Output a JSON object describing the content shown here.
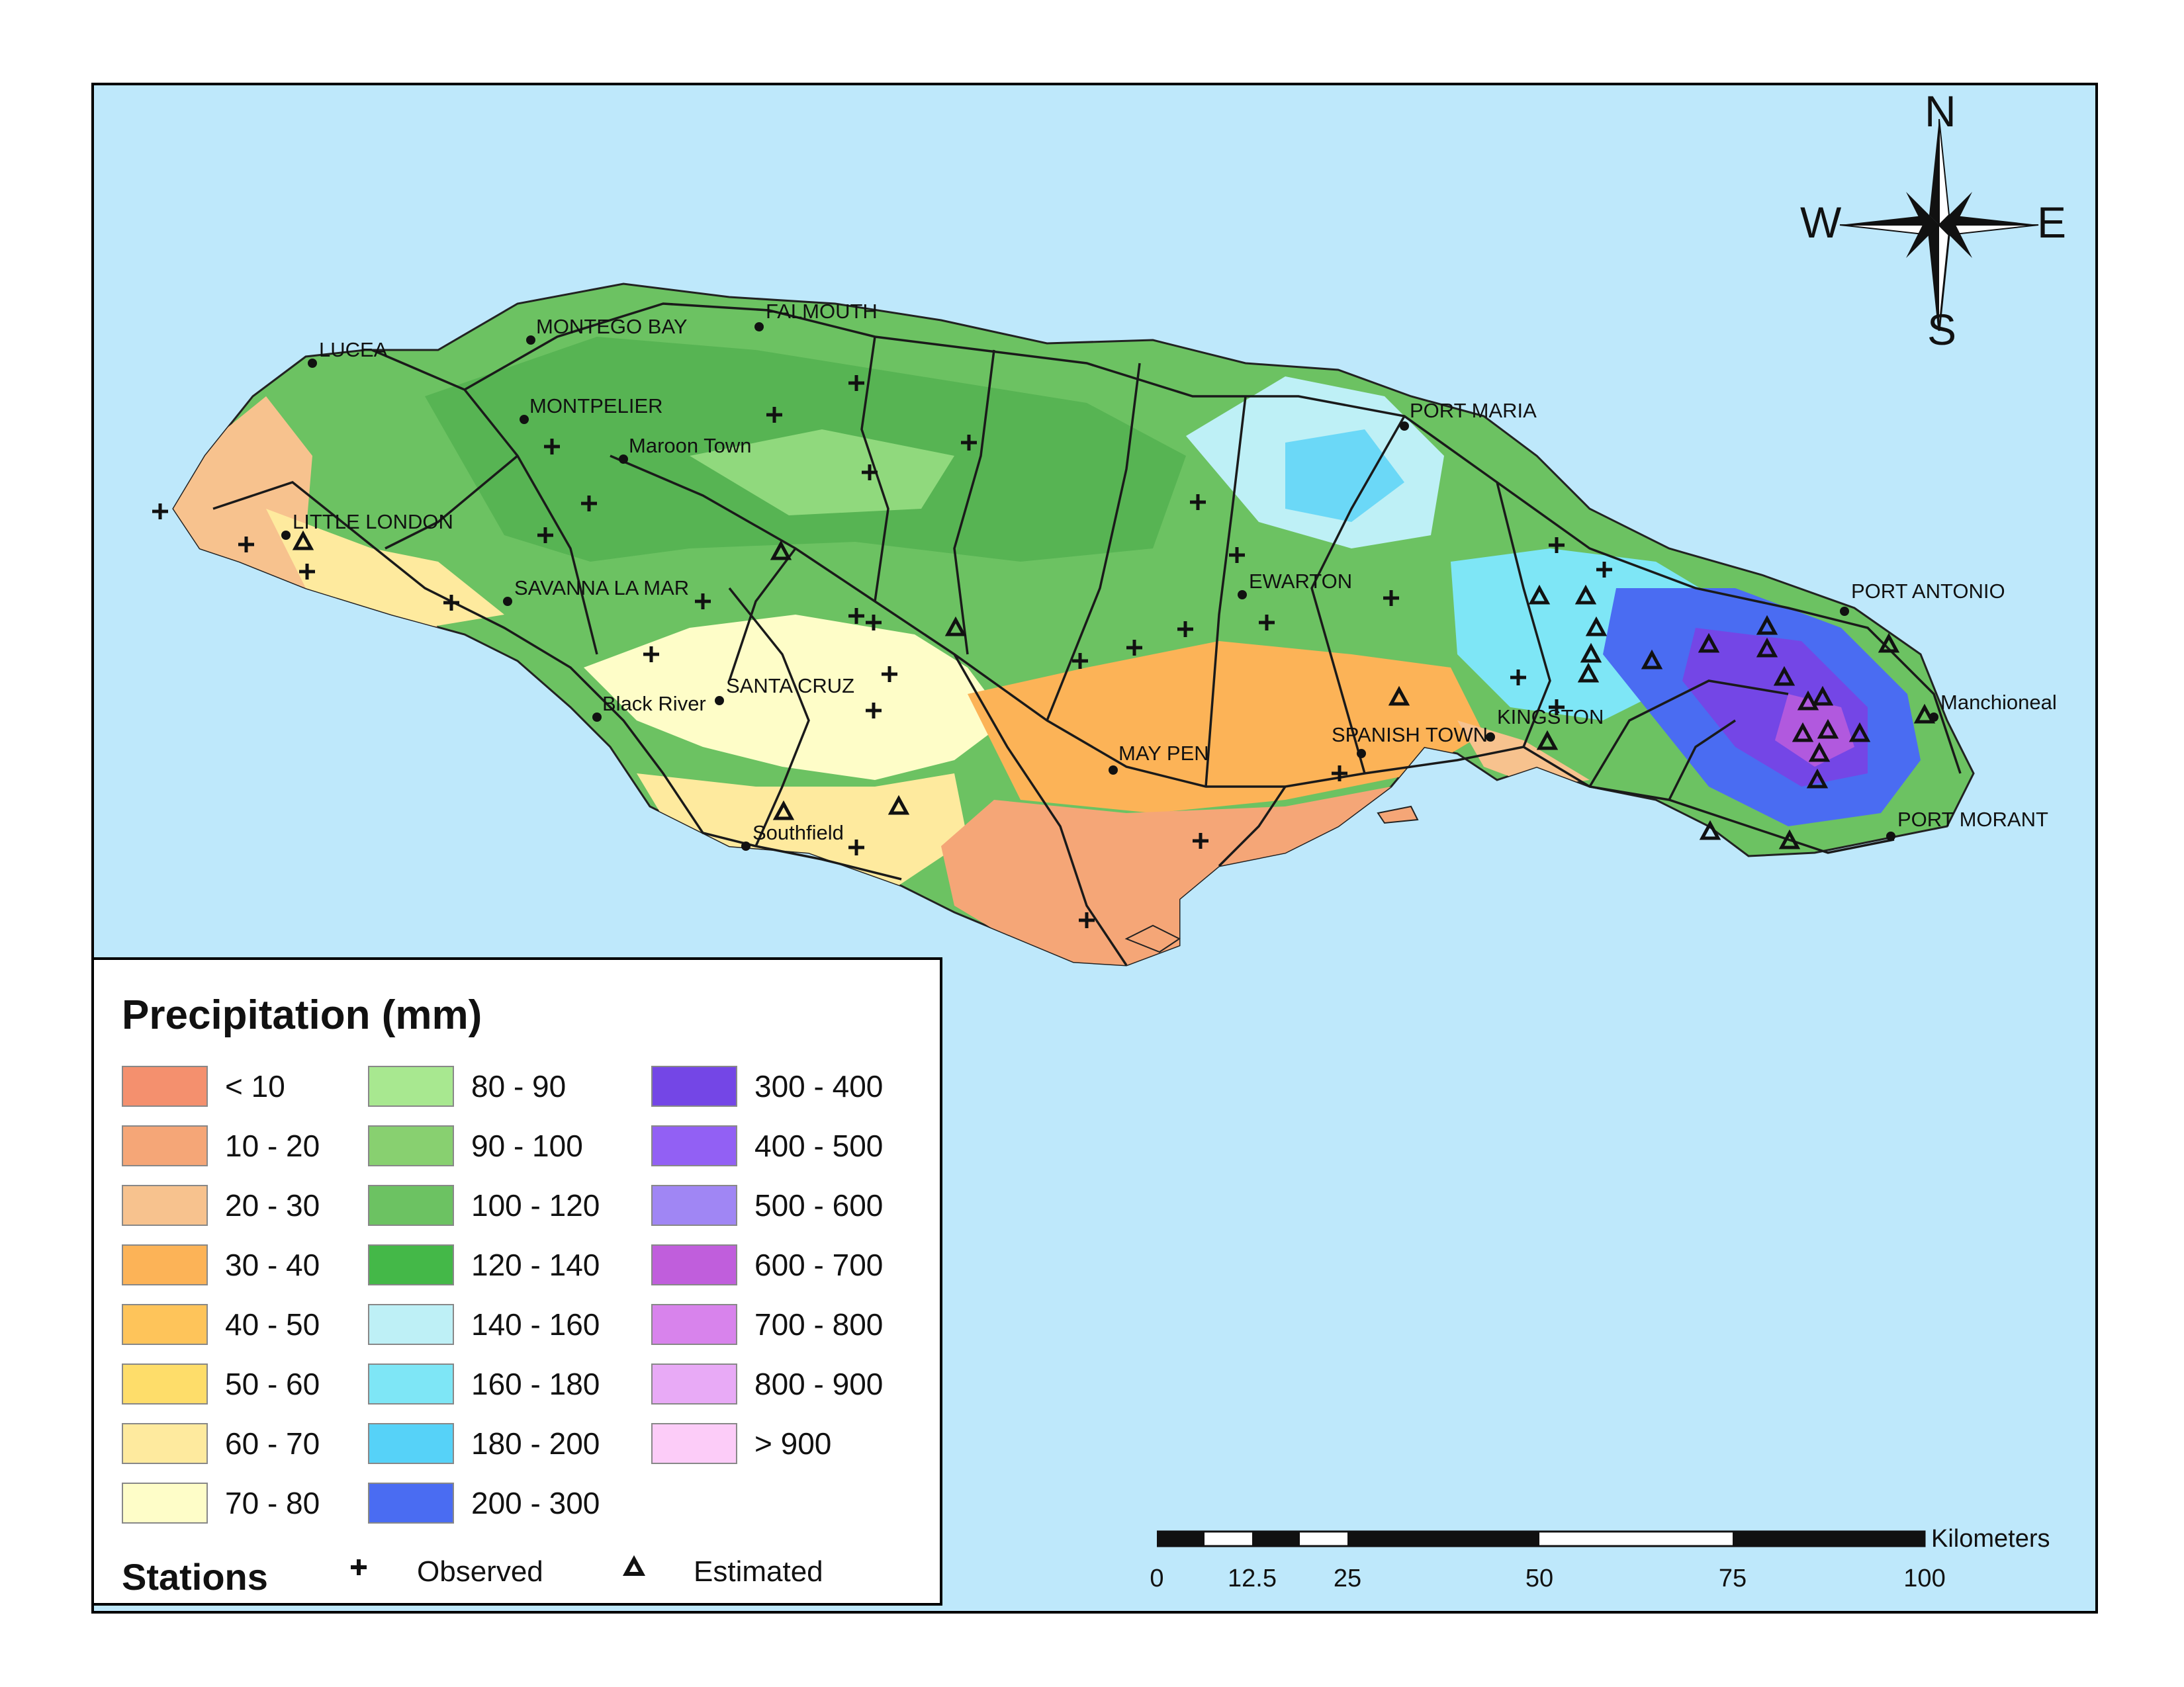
{
  "legend": {
    "title": "Precipitation (mm)",
    "classes": [
      {
        "label": "< 10",
        "color": "#f4906e"
      },
      {
        "label": "10 - 20",
        "color": "#f5a677"
      },
      {
        "label": "20 - 30",
        "color": "#f7c28e"
      },
      {
        "label": "30 - 40",
        "color": "#fcb357"
      },
      {
        "label": "40 - 50",
        "color": "#fec45a"
      },
      {
        "label": "50 - 60",
        "color": "#fedd6a"
      },
      {
        "label": "60 - 70",
        "color": "#feea9e"
      },
      {
        "label": "70 - 80",
        "color": "#fefdc8"
      },
      {
        "label": "80 - 90",
        "color": "#a8e890"
      },
      {
        "label": "90 - 100",
        "color": "#88d070"
      },
      {
        "label": "100 - 120",
        "color": "#6cc262"
      },
      {
        "label": "120 - 140",
        "color": "#44b848"
      },
      {
        "label": "140 - 160",
        "color": "#bef0f6"
      },
      {
        "label": "160 - 180",
        "color": "#7ee6f6"
      },
      {
        "label": "180 - 200",
        "color": "#56d2f8"
      },
      {
        "label": "200 - 300",
        "color": "#4a6cf2"
      },
      {
        "label": "300 - 400",
        "color": "#7446e6"
      },
      {
        "label": "400 - 500",
        "color": "#9260f4"
      },
      {
        "label": "500 - 600",
        "color": "#a086f4"
      },
      {
        "label": "600 - 700",
        "color": "#c05edc"
      },
      {
        "label": "700 - 800",
        "color": "#d883ec"
      },
      {
        "label": "800 - 900",
        "color": "#e8aaf6"
      },
      {
        "label": "> 900",
        "color": "#fcccf8"
      }
    ],
    "stations": {
      "title": "Stations",
      "observed_label": "Observed",
      "estimated_label": "Estimated"
    }
  },
  "compass": {
    "n": "N",
    "s": "S",
    "e": "E",
    "w": "W"
  },
  "scalebar": {
    "unit": "Kilometers",
    "ticks": [
      "0",
      "12.5",
      "25",
      "50",
      "75",
      "100"
    ]
  },
  "places": [
    {
      "name": "LUCEA"
    },
    {
      "name": "MONTEGO BAY"
    },
    {
      "name": "FALMOUTH"
    },
    {
      "name": "MONTPELIER"
    },
    {
      "name": "Maroon Town"
    },
    {
      "name": "LITTLE LONDON"
    },
    {
      "name": "SAVANNA LA MAR"
    },
    {
      "name": "Black River"
    },
    {
      "name": "SANTA CRUZ"
    },
    {
      "name": "Southfield"
    },
    {
      "name": "MAY PEN"
    },
    {
      "name": "SPANISH TOWN"
    },
    {
      "name": "KINGSTON"
    },
    {
      "name": "EWARTON"
    },
    {
      "name": "PORT MARIA"
    },
    {
      "name": "PORT ANTONIO"
    },
    {
      "name": "Manchioneal"
    },
    {
      "name": "PORT MORANT"
    }
  ]
}
